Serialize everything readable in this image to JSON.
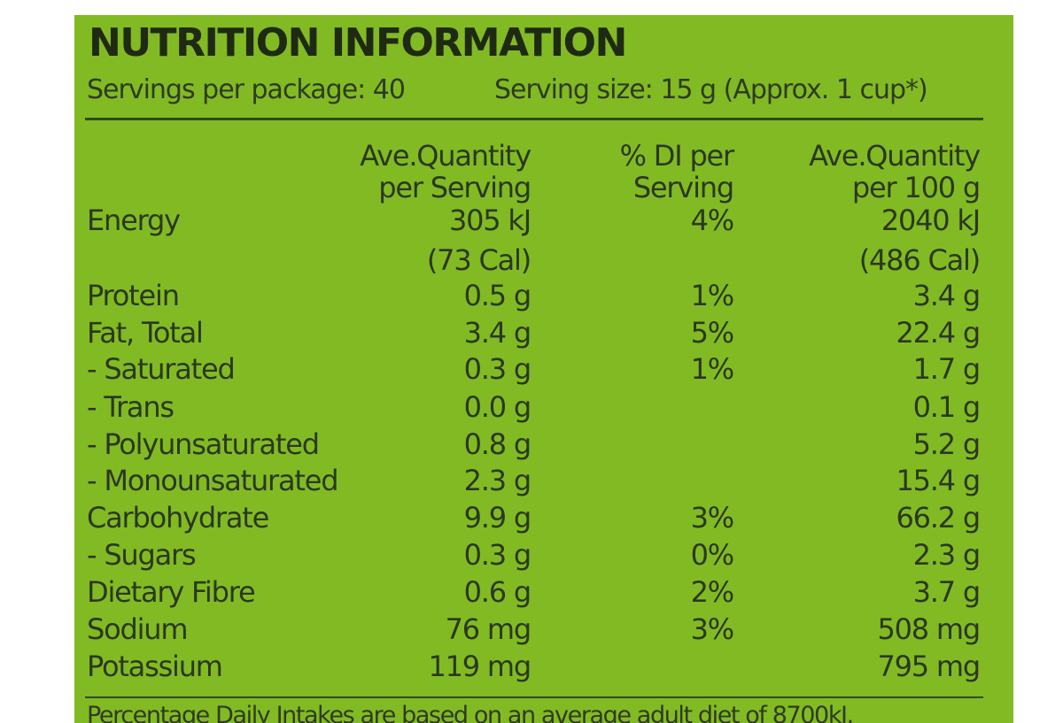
{
  "title": "NUTRITION INFORMATION",
  "servings_per_package": "Servings per package: 40",
  "serving_size": "Serving size: 15 g (Approx. 1 cup*)",
  "headers": {
    "per_serving": [
      "Ave.Quantity",
      "per Serving"
    ],
    "di_per_serving": [
      "% DI per",
      "Serving"
    ],
    "per_100g": [
      "Ave.Quantity",
      "per 100 g"
    ]
  },
  "rows": [
    {
      "label": "Energy",
      "serving": "305 kJ",
      "di": "4%",
      "per100": "2040 kJ"
    },
    {
      "label": "",
      "serving": "(73 Cal)",
      "di": "",
      "per100": "(486 Cal)"
    },
    {
      "label": "Protein",
      "serving": "0.5 g",
      "di": "1%",
      "per100": "3.4 g"
    },
    {
      "label": "Fat, Total",
      "serving": "3.4 g",
      "di": "5%",
      "per100": "22.4 g"
    },
    {
      "label": "- Saturated",
      "serving": "0.3 g",
      "di": "1%",
      "per100": "1.7 g"
    },
    {
      "label": "- Trans",
      "serving": "0.0 g",
      "di": "",
      "per100": "0.1 g"
    },
    {
      "label": "- Polyunsaturated",
      "serving": "0.8 g",
      "di": "",
      "per100": "5.2 g"
    },
    {
      "label": "- Monounsaturated",
      "serving": "2.3 g",
      "di": "",
      "per100": "15.4 g"
    },
    {
      "label": "Carbohydrate",
      "serving": "9.9 g",
      "di": "3%",
      "per100": "66.2 g"
    },
    {
      "label": "- Sugars",
      "serving": "0.3 g",
      "di": "0%",
      "per100": "2.3 g"
    },
    {
      "label": "Dietary Fibre",
      "serving": "0.6 g",
      "di": "2%",
      "per100": "3.7 g"
    },
    {
      "label": "Sodium",
      "serving": "76 mg",
      "di": "3%",
      "per100": "508 mg"
    },
    {
      "label": "Potassium",
      "serving": "119 mg",
      "di": "",
      "per100": "795 mg"
    }
  ],
  "footnote": "Percentage Daily Intakes are based on an average adult diet of 8700kJ."
}
